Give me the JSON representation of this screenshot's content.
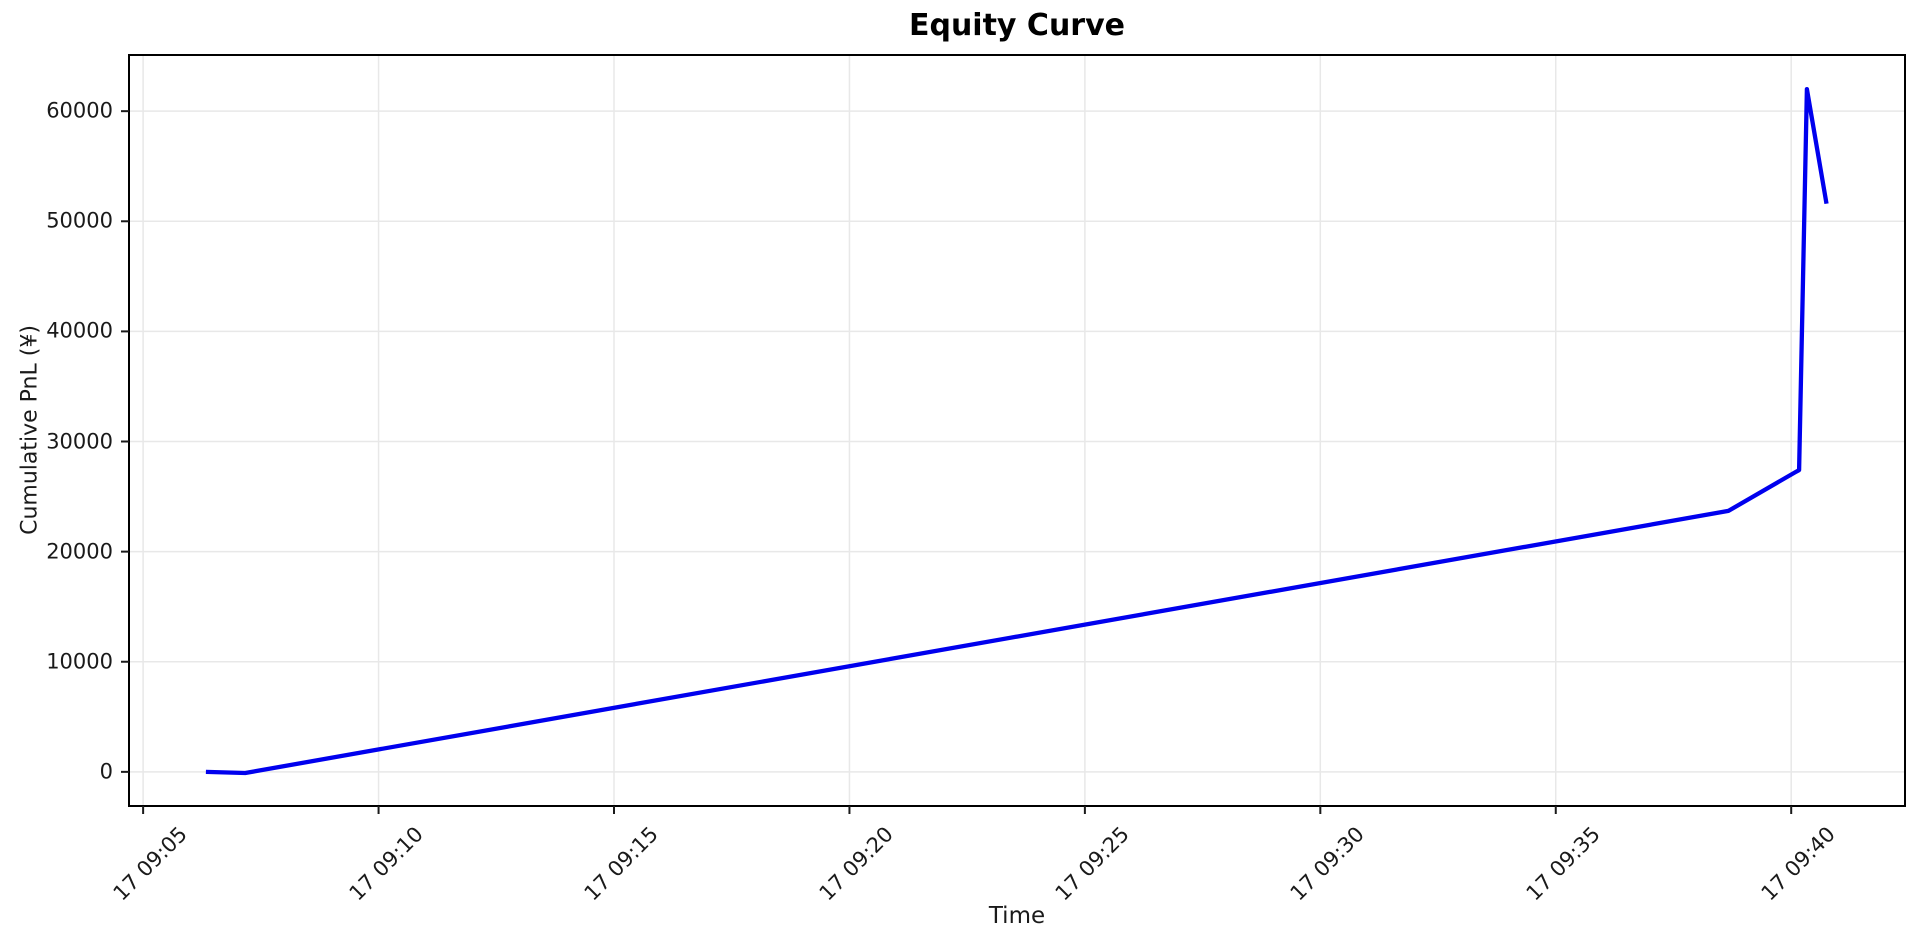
{
  "chart_data": {
    "type": "line",
    "title": "Equity Curve",
    "xlabel": "Time",
    "ylabel": "Cumulative PnL (¥)",
    "grid": true,
    "legend": "none",
    "line_color": "#0000ee",
    "grid_color": "#e8e8e8",
    "spine_color": "#000000",
    "tick_color": "#1a1a1a",
    "x_ticks": [
      {
        "time": "09:05:00",
        "label": "17 09:05"
      },
      {
        "time": "09:10:00",
        "label": "17 09:10"
      },
      {
        "time": "09:15:00",
        "label": "17 09:15"
      },
      {
        "time": "09:20:00",
        "label": "17 09:20"
      },
      {
        "time": "09:25:00",
        "label": "17 09:25"
      },
      {
        "time": "09:30:00",
        "label": "17 09:30"
      },
      {
        "time": "09:35:00",
        "label": "17 09:35"
      },
      {
        "time": "09:40:00",
        "label": "17 09:40"
      }
    ],
    "y_ticks": [
      0,
      10000,
      20000,
      30000,
      40000,
      50000,
      60000
    ],
    "xlim": [
      "09:04:42",
      "09:42:25"
    ],
    "ylim": [
      -3100,
      65100
    ],
    "series": [
      {
        "name": "Cumulative PnL",
        "points": [
          {
            "t": "09:06:20",
            "v": 0
          },
          {
            "t": "09:07:10",
            "v": -100
          },
          {
            "t": "09:38:40",
            "v": 23700
          },
          {
            "t": "09:40:05",
            "v": 27200
          },
          {
            "t": "09:40:10",
            "v": 27400
          },
          {
            "t": "09:40:20",
            "v": 62000
          },
          {
            "t": "09:40:45",
            "v": 51600
          }
        ]
      }
    ]
  }
}
